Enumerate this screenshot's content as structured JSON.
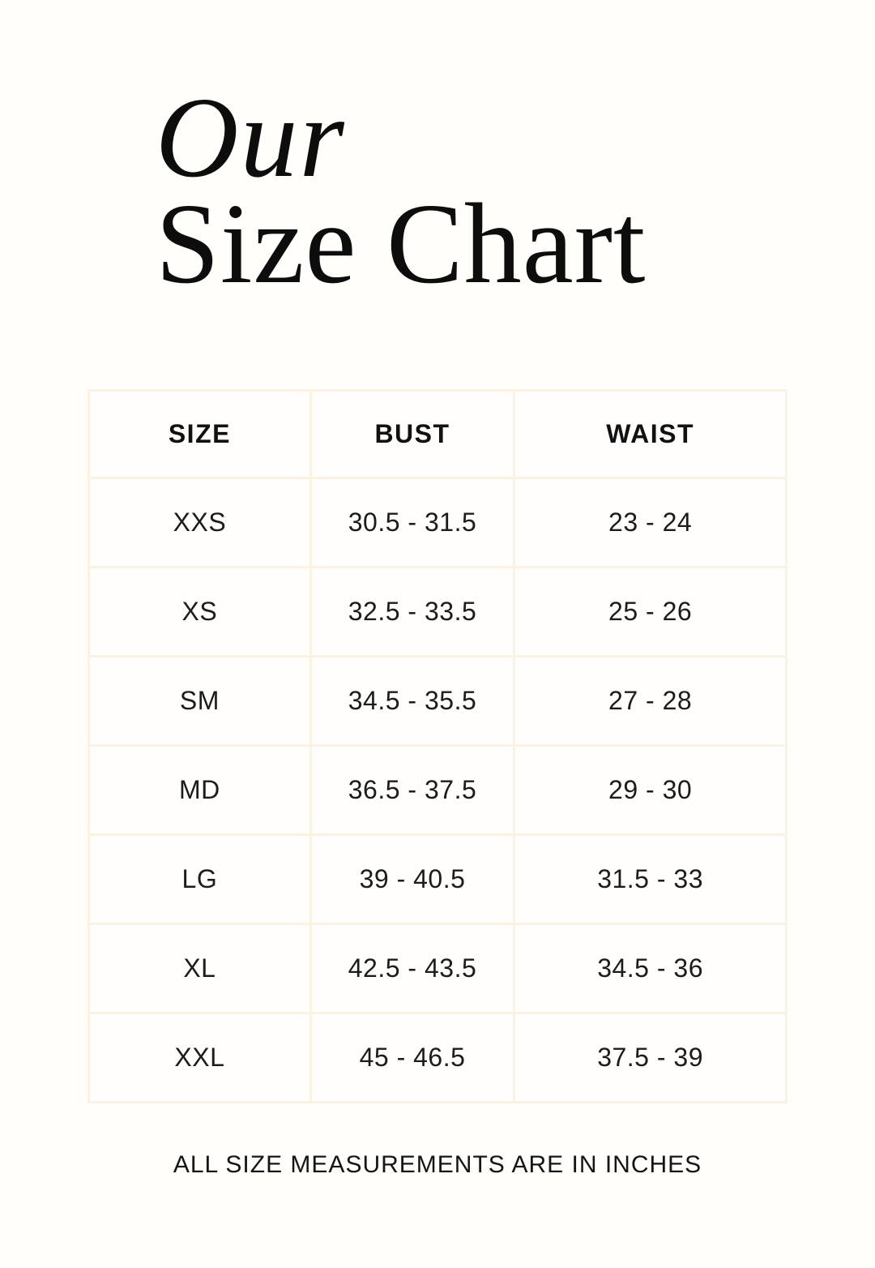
{
  "page": {
    "title_line1": "Our",
    "title_line2": "Size Chart",
    "footer_note": "ALL SIZE MEASUREMENTS ARE IN INCHES"
  },
  "colors": {
    "page_background": "#fffefb",
    "table_border": "#fcf2e4",
    "title_text": "#0d0d0d",
    "body_text": "#1c1c1c"
  },
  "size_table": {
    "columns": [
      "SIZE",
      "BUST",
      "WAIST"
    ],
    "rows": [
      {
        "size": "XXS",
        "bust": "30.5 - 31.5",
        "waist": "23 - 24"
      },
      {
        "size": "XS",
        "bust": "32.5 - 33.5",
        "waist": "25 - 26"
      },
      {
        "size": "SM",
        "bust": "34.5 - 35.5",
        "waist": "27 - 28"
      },
      {
        "size": "MD",
        "bust": "36.5 - 37.5",
        "waist": "29 - 30"
      },
      {
        "size": "LG",
        "bust": "39 - 40.5",
        "waist": "31.5 - 33"
      },
      {
        "size": "XL",
        "bust": "42.5 - 43.5",
        "waist": "34.5 - 36"
      },
      {
        "size": "XXL",
        "bust": "45 - 46.5",
        "waist": "37.5 - 39"
      }
    ]
  }
}
